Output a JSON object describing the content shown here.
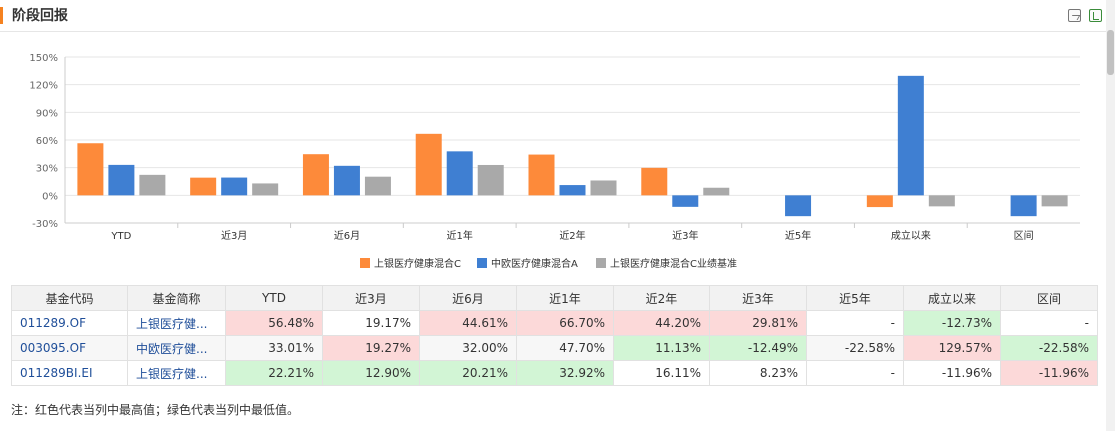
{
  "header": {
    "title": "阶段回报"
  },
  "toolbar": {
    "icons": [
      "image-export-icon",
      "excel-export-icon"
    ]
  },
  "colors": {
    "series": [
      "#fd8a3a",
      "#3f7fd2",
      "#a9a9a9"
    ],
    "max_cell": "#fcd9d9",
    "min_cell": "#d2f5d5"
  },
  "chart_data": {
    "type": "bar",
    "categories": [
      "YTD",
      "近3月",
      "近6月",
      "近1年",
      "近2年",
      "近3年",
      "近5年",
      "成立以来",
      "区间"
    ],
    "series": [
      {
        "name": "上银医疗健康混合C",
        "values": [
          56.48,
          19.17,
          44.61,
          66.7,
          44.2,
          29.81,
          null,
          -12.73,
          null
        ]
      },
      {
        "name": "中欧医疗健康混合A",
        "values": [
          33.01,
          19.27,
          32.0,
          47.7,
          11.13,
          -12.49,
          -22.58,
          129.57,
          -22.58
        ]
      },
      {
        "name": "上银医疗健康混合C业绩基准",
        "values": [
          22.21,
          12.9,
          20.21,
          32.92,
          16.11,
          8.23,
          null,
          -11.96,
          -11.96
        ]
      }
    ],
    "y_ticks": [
      "150%",
      "120%",
      "90%",
      "60%",
      "30%",
      "0%",
      "-30%"
    ],
    "ylim": [
      -30,
      150
    ],
    "grid": true,
    "legend_position": "bottom-center"
  },
  "table": {
    "headers": [
      "基金代码",
      "基金简称",
      "YTD",
      "近3月",
      "近6月",
      "近1年",
      "近2年",
      "近3年",
      "近5年",
      "成立以来",
      "区间"
    ],
    "rows": [
      {
        "code": "011289.OF",
        "name": "上银医疗健...",
        "values": [
          "56.48%",
          "19.17%",
          "44.61%",
          "66.70%",
          "44.20%",
          "29.81%",
          "-",
          "-12.73%",
          "-"
        ]
      },
      {
        "code": "003095.OF",
        "name": "中欧医疗健...",
        "values": [
          "33.01%",
          "19.27%",
          "32.00%",
          "47.70%",
          "11.13%",
          "-12.49%",
          "-22.58%",
          "129.57%",
          "-22.58%"
        ]
      },
      {
        "code": "011289BI.EI",
        "name": "上银医疗健...",
        "values": [
          "22.21%",
          "12.90%",
          "20.21%",
          "32.92%",
          "16.11%",
          "8.23%",
          "-",
          "-11.96%",
          "-11.96%"
        ]
      }
    ],
    "highlights": [
      [
        "hi",
        "",
        "hi",
        "hi",
        "hi",
        "hi",
        "",
        "lo",
        ""
      ],
      [
        "",
        "hi",
        "",
        "",
        "lo",
        "lo",
        "",
        "hi",
        "lo"
      ],
      [
        "lo",
        "lo",
        "lo",
        "lo",
        "",
        "",
        "",
        "",
        "hi"
      ]
    ]
  },
  "note": "注：红色代表当列中最高值；绿色代表当列中最低值。"
}
